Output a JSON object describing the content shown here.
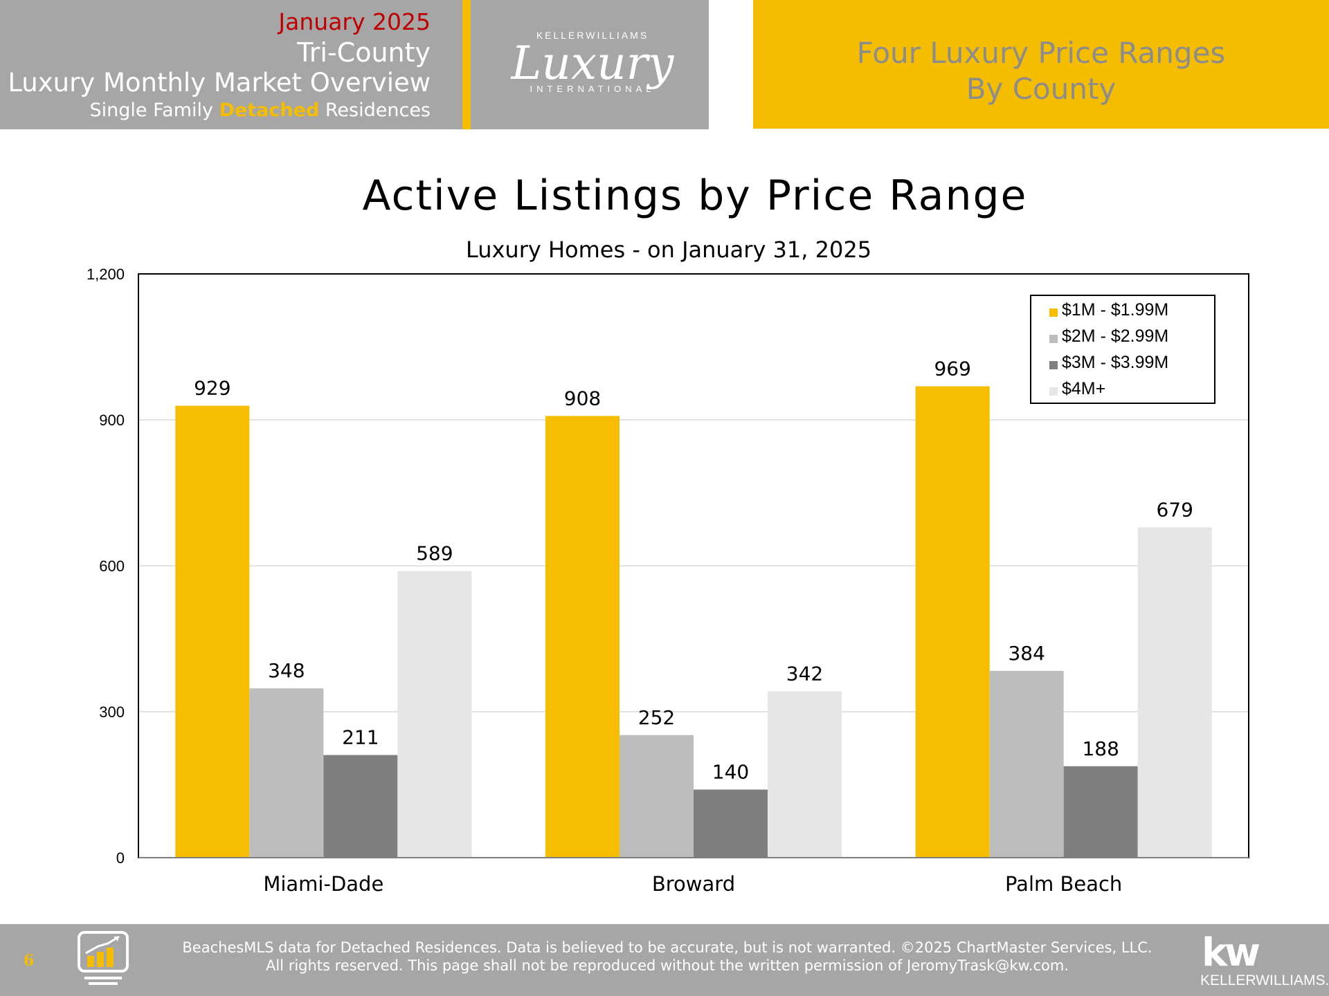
{
  "header": {
    "month": "January 2025",
    "region": "Tri-County",
    "title": "Luxury Monthly Market Overview",
    "subtitle_pre": "Single Family ",
    "subtitle_highlight": "Detached",
    "subtitle_post": " Residences",
    "logo_top": "KELLERWILLIAMS",
    "logo_script": "Luxury",
    "logo_bottom": "INTERNATIONAL",
    "right_line1": "Four Luxury Price Ranges",
    "right_line2": "By County"
  },
  "colors": {
    "gold": "#f5bd02",
    "header_gray": "#a6a6a6",
    "series": [
      "#f7bd00",
      "#bdbdbd",
      "#7f7f7f",
      "#e6e6e6"
    ]
  },
  "chart_data": {
    "type": "bar",
    "title": "Active Listings by Price Range",
    "subtitle": "Luxury Homes - on January 31, 2025",
    "categories": [
      "Miami-Dade",
      "Broward",
      "Palm Beach"
    ],
    "series": [
      {
        "name": "$1M - $1.99M",
        "values": [
          929,
          908,
          969
        ]
      },
      {
        "name": "$2M - $2.99M",
        "values": [
          348,
          252,
          384
        ]
      },
      {
        "name": "$3M - $3.99M",
        "values": [
          211,
          140,
          188
        ]
      },
      {
        "name": "$4M+",
        "values": [
          589,
          342,
          679
        ]
      }
    ],
    "ylim": [
      0,
      1200
    ],
    "yticks": [
      0,
      300,
      600,
      900,
      1200
    ],
    "ytick_labels": [
      "0",
      "300",
      "600",
      "900",
      "1,200"
    ],
    "grid": true,
    "legend": "top-right"
  },
  "footer": {
    "page_number": "6",
    "line1": "BeachesMLS data for Detached Residences.  Data is believed to be accurate, but is not warranted.   ©2025  ChartMaster Services, LLC.",
    "line2": "All rights reserved. This page shall not be reproduced without the written permission of JeromyTrask@kw.com.",
    "kw_mark": "kw",
    "kw_word": "KELLERWILLIAMS."
  }
}
